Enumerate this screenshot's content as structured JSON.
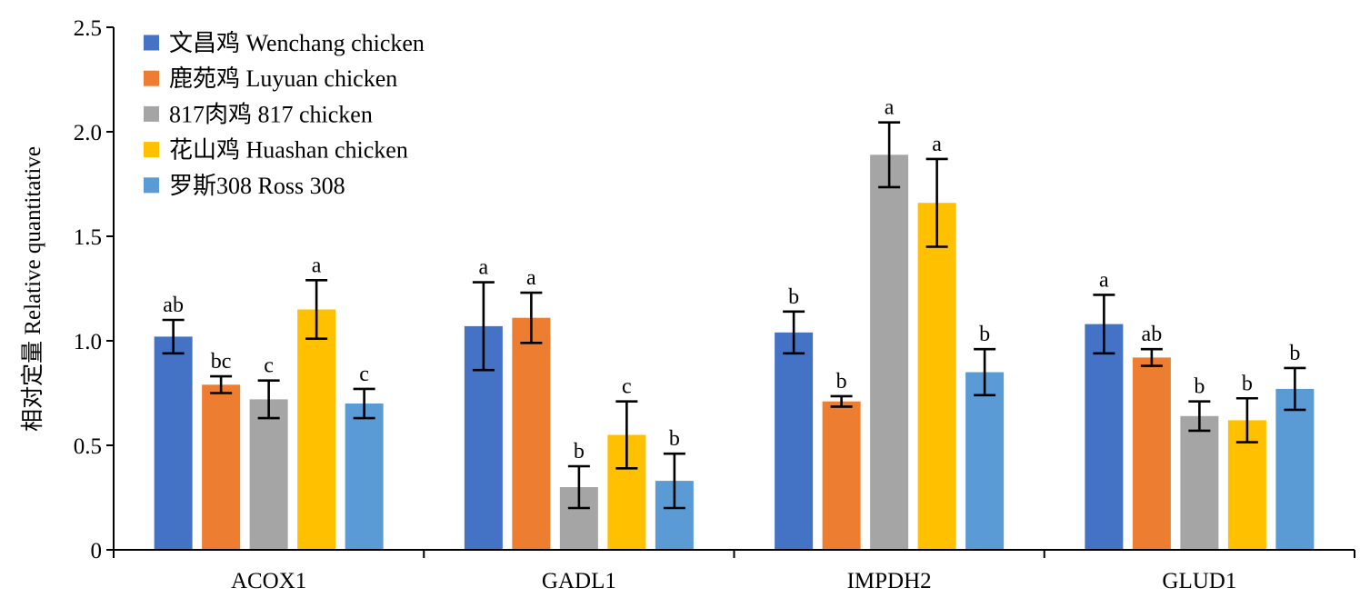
{
  "chart_data": {
    "type": "bar",
    "ylabel": "相对定量 Relative quantitative",
    "xlabel": "",
    "ylim": [
      0,
      2.5
    ],
    "yticks": [
      0,
      0.5,
      1.0,
      1.5,
      2.0,
      2.5
    ],
    "ytick_labels": [
      "0",
      "0.5",
      "1.0",
      "1.5",
      "2.0",
      "2.5"
    ],
    "grid": false,
    "legend_position": "top-left",
    "categories": [
      "ACOX1",
      "GADL1",
      "IMPDH2",
      "GLUD1"
    ],
    "series": [
      {
        "name": "文昌鸡 Wenchang chicken",
        "color": "#4472C4",
        "values": [
          1.02,
          1.07,
          1.04,
          1.08
        ],
        "errors": [
          0.08,
          0.21,
          0.1,
          0.14
        ],
        "labels": [
          "ab",
          "a",
          "b",
          "a"
        ]
      },
      {
        "name": "鹿苑鸡 Luyuan chicken",
        "color": "#ED7D31",
        "values": [
          0.79,
          1.11,
          0.71,
          0.92
        ],
        "errors": [
          0.04,
          0.12,
          0.025,
          0.04
        ],
        "labels": [
          "bc",
          "a",
          "b",
          "ab"
        ]
      },
      {
        "name": "817肉鸡 817 chicken",
        "color": "#A5A5A5",
        "values": [
          0.72,
          0.3,
          1.89,
          0.64
        ],
        "errors": [
          0.09,
          0.1,
          0.155,
          0.07
        ],
        "labels": [
          "c",
          "b",
          "a",
          "b"
        ]
      },
      {
        "name": "花山鸡 Huashan chicken",
        "color": "#FFC000",
        "values": [
          1.15,
          0.55,
          1.66,
          0.62
        ],
        "errors": [
          0.14,
          0.16,
          0.21,
          0.105
        ],
        "labels": [
          "a",
          "c",
          "a",
          "b"
        ]
      },
      {
        "name": "罗斯308 Ross 308",
        "color": "#5B9BD5",
        "values": [
          0.7,
          0.33,
          0.85,
          0.77
        ],
        "errors": [
          0.07,
          0.13,
          0.11,
          0.1
        ],
        "labels": [
          "c",
          "b",
          "b",
          "b"
        ]
      }
    ]
  }
}
